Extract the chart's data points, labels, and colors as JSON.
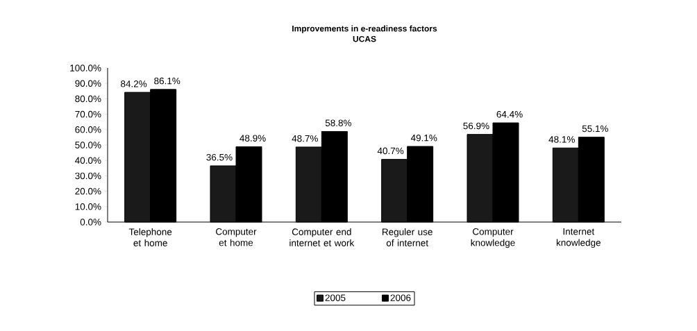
{
  "chart_data": {
    "type": "bar",
    "title": "Improvements in e-readiness factors",
    "subtitle": "UCAS",
    "categories": [
      "Telephone et home",
      "Computer et home",
      "Computer end internet et work",
      "Reguler use of internet",
      "Computer knowledge",
      "Internet knowledge"
    ],
    "series": [
      {
        "name": "2005",
        "color": "#1a1a1a",
        "values": [
          84.2,
          36.5,
          48.7,
          40.7,
          56.9,
          48.1
        ],
        "value_labels": [
          "84.2%",
          "36.5%",
          "48.7%",
          "40.7%",
          "56.9%",
          "48.1%"
        ]
      },
      {
        "name": "2006",
        "color": "#000000",
        "values": [
          86.1,
          48.9,
          58.8,
          49.1,
          64.4,
          55.1
        ],
        "value_labels": [
          "86.1%",
          "48.9%",
          "58.8%",
          "49.1%",
          "64.4%",
          "55.1%"
        ]
      }
    ],
    "ylim": [
      0,
      100
    ],
    "yticks": [
      {
        "value": 0,
        "label": "0.0%"
      },
      {
        "value": 10,
        "label": "10.0%"
      },
      {
        "value": 20,
        "label": "20.0%"
      },
      {
        "value": 30,
        "label": "30.0%"
      },
      {
        "value": 40,
        "label": "40.0%"
      },
      {
        "value": 50,
        "label": "50.0%"
      },
      {
        "value": 60,
        "label": "60.0%"
      },
      {
        "value": 70,
        "label": "70.0%"
      },
      {
        "value": 80,
        "label": "80.0%"
      },
      {
        "value": 90,
        "label": "90.0%"
      },
      {
        "value": 100,
        "label": "100.0%"
      }
    ],
    "legend": "bottom",
    "grid": false
  }
}
